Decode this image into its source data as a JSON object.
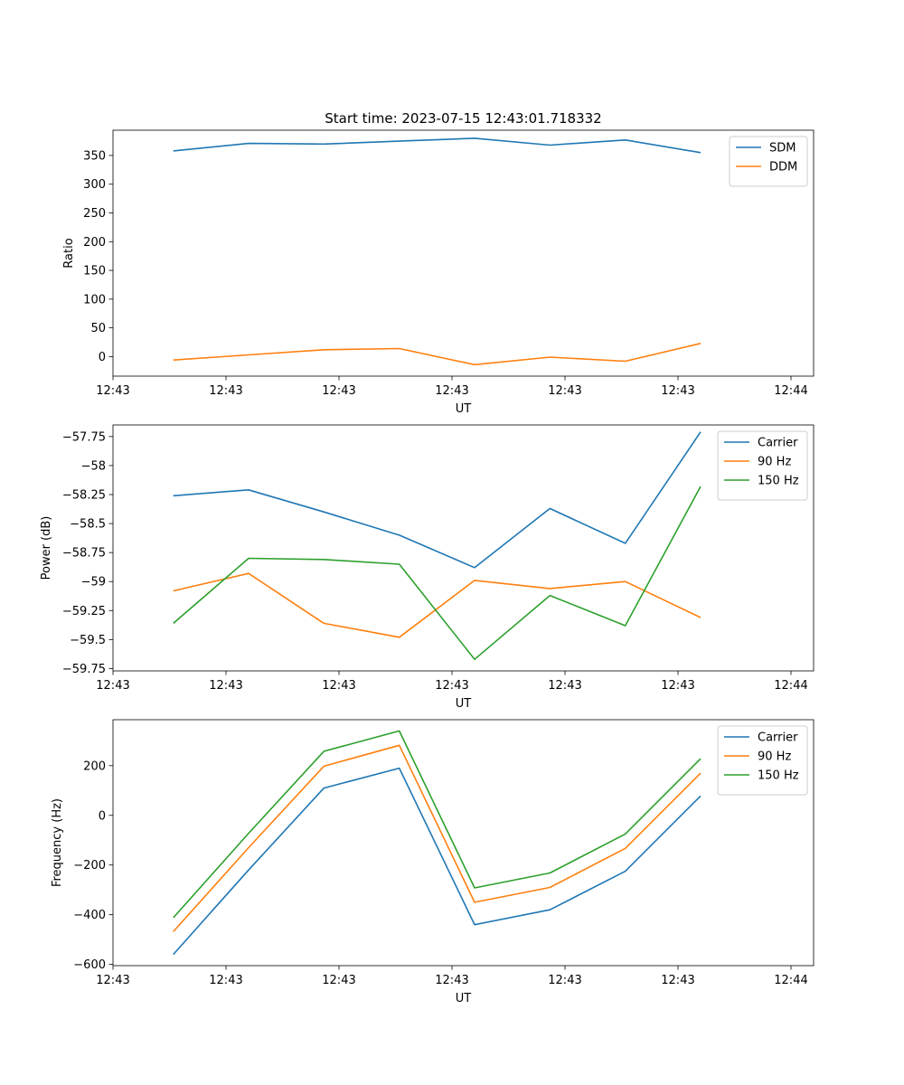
{
  "chart_data": [
    {
      "type": "line",
      "title": "Start time: 2023-07-15 12:43:01.718332",
      "xlabel": "UT",
      "ylabel": "Ratio",
      "ylim": [
        -34,
        394
      ],
      "yticks": [
        0,
        50,
        100,
        150,
        200,
        250,
        300,
        350
      ],
      "xlim": [
        0,
        9.3
      ],
      "x": [
        0.8,
        1.8,
        2.8,
        3.8,
        4.8,
        5.8,
        6.8,
        7.8
      ],
      "xticks": [
        0.0,
        1.5,
        3.0,
        4.5,
        6.0,
        7.5,
        9.0
      ],
      "xticklabels": [
        "12:43",
        "12:43",
        "12:43",
        "12:43",
        "12:43",
        "12:43",
        "12:44"
      ],
      "legend": "top-right",
      "series": [
        {
          "name": "SDM",
          "color": "#1f77b4",
          "values": [
            358,
            371,
            370,
            375,
            380,
            368,
            377,
            355
          ]
        },
        {
          "name": "DDM",
          "color": "#ff7f0e",
          "values": [
            -6,
            3,
            12,
            14,
            -14,
            -1,
            -8,
            23
          ]
        }
      ]
    },
    {
      "type": "line",
      "title": "",
      "xlabel": "UT",
      "ylabel": "Power (dB)",
      "ylim": [
        -59.77,
        -57.65
      ],
      "yticks": [
        -59.75,
        -59.5,
        -59.25,
        -59.0,
        -58.75,
        -58.5,
        -58.25,
        -58.0,
        -57.75
      ],
      "xlim": [
        0,
        9.3
      ],
      "x": [
        0.8,
        1.8,
        2.8,
        3.8,
        4.8,
        5.8,
        6.8,
        7.8
      ],
      "xticks": [
        0.0,
        1.5,
        3.0,
        4.5,
        6.0,
        7.5,
        9.0
      ],
      "xticklabels": [
        "12:43",
        "12:43",
        "12:43",
        "12:43",
        "12:43",
        "12:43",
        "12:44"
      ],
      "legend": "top-right",
      "series": [
        {
          "name": "Carrier",
          "color": "#1f77b4",
          "values": [
            -58.26,
            -58.21,
            -58.4,
            -58.6,
            -58.88,
            -58.37,
            -58.67,
            -57.71
          ]
        },
        {
          "name": "90 Hz",
          "color": "#ff7f0e",
          "values": [
            -59.08,
            -58.93,
            -59.36,
            -59.48,
            -58.99,
            -59.06,
            -59.0,
            -59.31
          ]
        },
        {
          "name": "150 Hz",
          "color": "#2ca02c",
          "values": [
            -59.36,
            -58.8,
            -58.81,
            -58.85,
            -59.67,
            -59.12,
            -59.38,
            -58.18
          ]
        }
      ]
    },
    {
      "type": "line",
      "title": "",
      "xlabel": "UT",
      "ylabel": "Frequency (Hz)",
      "ylim": [
        -605,
        385
      ],
      "yticks": [
        -600,
        -400,
        -200,
        0,
        200
      ],
      "xlim": [
        0,
        9.3
      ],
      "x": [
        0.8,
        1.8,
        2.8,
        3.8,
        4.8,
        5.8,
        6.8,
        7.8
      ],
      "xticks": [
        0.0,
        1.5,
        3.0,
        4.5,
        6.0,
        7.5,
        9.0
      ],
      "xticklabels": [
        "12:43",
        "12:43",
        "12:43",
        "12:43",
        "12:43",
        "12:43",
        "12:44"
      ],
      "legend": "top-right",
      "series": [
        {
          "name": "Carrier",
          "color": "#1f77b4",
          "values": [
            -560,
            -220,
            110,
            190,
            -440,
            -380,
            -225,
            78
          ]
        },
        {
          "name": "90 Hz",
          "color": "#ff7f0e",
          "values": [
            -468,
            -130,
            198,
            282,
            -350,
            -290,
            -133,
            170
          ]
        },
        {
          "name": "150 Hz",
          "color": "#2ca02c",
          "values": [
            -412,
            -72,
            258,
            340,
            -292,
            -232,
            -75,
            228
          ]
        }
      ]
    }
  ]
}
